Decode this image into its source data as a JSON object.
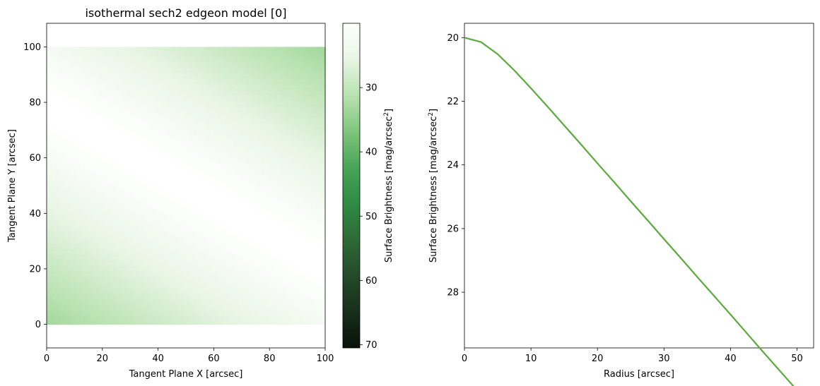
{
  "chart_data": [
    {
      "type": "heatmap",
      "title": "isothermal sech2 edgeon model [0]",
      "xlabel": "Tangent Plane X [arcsec]",
      "ylabel": "Tangent Plane Y [arcsec]",
      "xlim": [
        0,
        100
      ],
      "ylim": [
        -8.5,
        108.5
      ],
      "image_extent": {
        "x": [
          0,
          100
        ],
        "y": [
          0,
          100
        ]
      },
      "xticks": [
        0,
        20,
        40,
        60,
        80,
        100
      ],
      "yticks": [
        0,
        20,
        40,
        60,
        80,
        100
      ],
      "model": {
        "center": [
          50,
          50
        ],
        "angle_deg": 150,
        "mu0": 20,
        "scale_height": 10,
        "mu_max": 70.5
      },
      "colorbar": {
        "label": "Surface Brightness [mag/arcsec",
        "label_sup": "2",
        "label_end": "]",
        "range": [
          20,
          70.5
        ],
        "inverted": true,
        "ticks": [
          30,
          40,
          50,
          60,
          70
        ],
        "colormap": [
          "#ffffff",
          "#e8f5e4",
          "#b8e2b0",
          "#7fc67c",
          "#48a456",
          "#2f8b42",
          "#2d6a36",
          "#244a29",
          "#162f1a",
          "#08110a"
        ]
      }
    },
    {
      "type": "line",
      "xlabel": "Radius [arcsec]",
      "ylabel": "Surface Brightness [mag/arcsec",
      "ylabel_sup": "2",
      "ylabel_end": "]",
      "xlim": [
        0,
        52.5
      ],
      "ylim": [
        29.75,
        19.55
      ],
      "y_inverted": true,
      "xticks": [
        0,
        10,
        20,
        30,
        40,
        50
      ],
      "yticks": [
        20,
        22,
        24,
        26,
        28
      ],
      "series": [
        {
          "color": "#5aaa3c",
          "x": [
            0,
            2.5,
            5,
            7.5,
            10,
            12.5,
            15,
            17.5,
            20,
            22.5,
            25,
            27.5,
            30,
            32.5,
            35,
            37.5,
            40,
            42.5,
            45,
            47.5,
            50
          ],
          "y": [
            20.0,
            20.14,
            20.52,
            21.03,
            21.59,
            22.17,
            22.76,
            23.35,
            23.95,
            24.54,
            25.14,
            25.73,
            26.33,
            26.92,
            27.52,
            28.11,
            28.7,
            29.3,
            29.9,
            30.49,
            31.08
          ]
        }
      ]
    }
  ]
}
